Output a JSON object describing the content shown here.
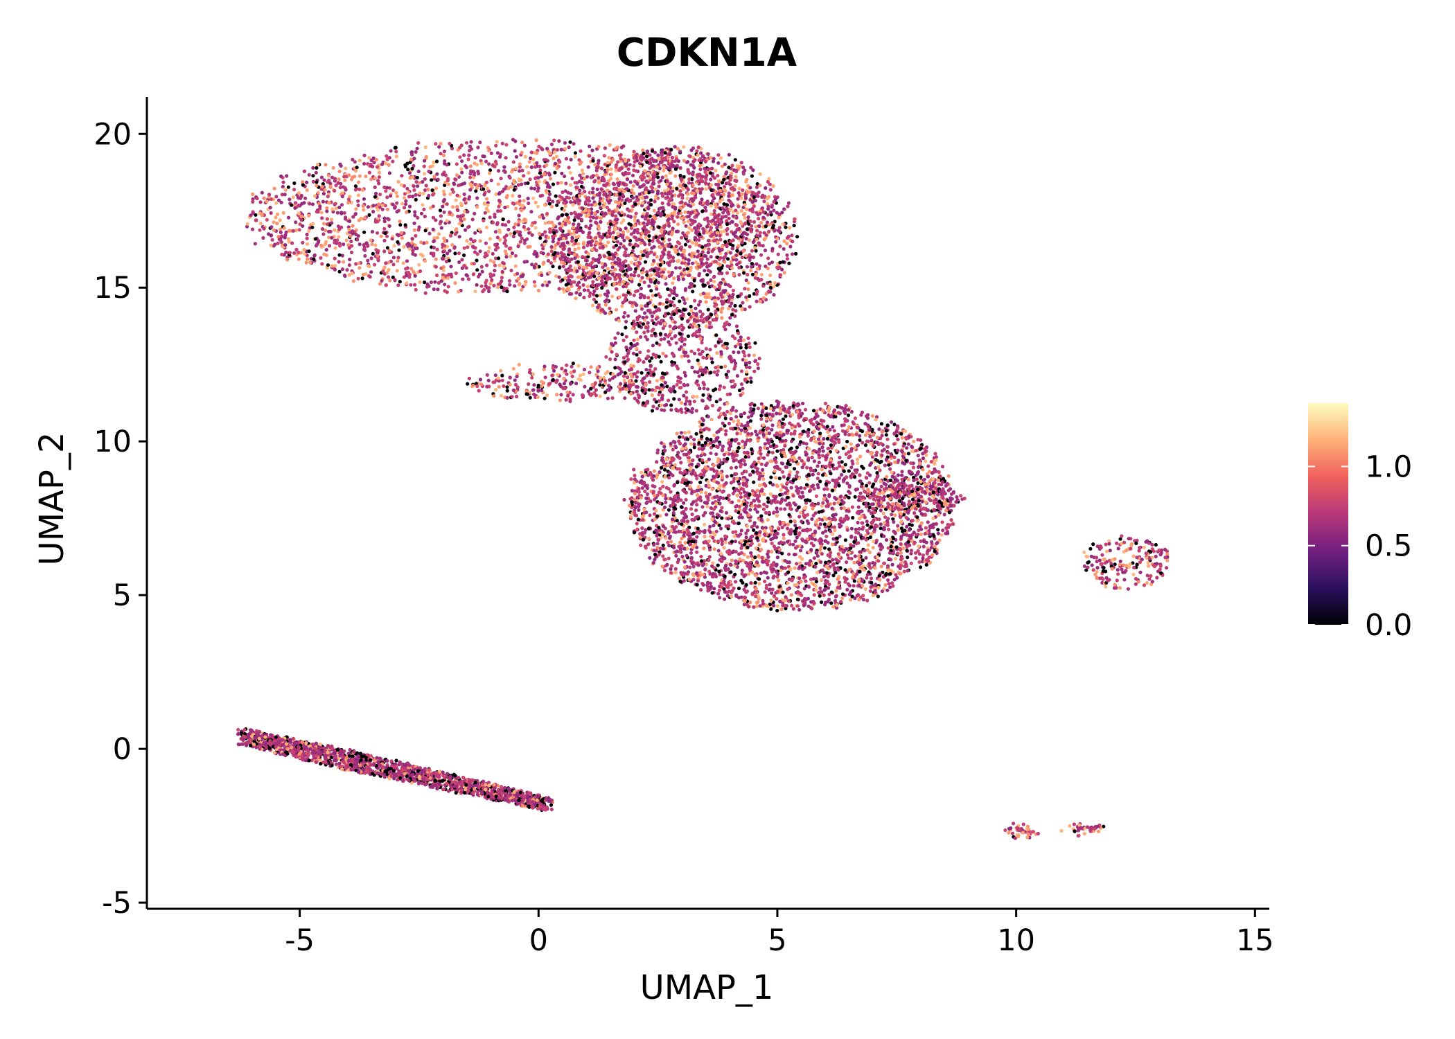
{
  "chart_data": {
    "type": "scatter",
    "title": "CDKN1A",
    "xlabel": "UMAP_1",
    "ylabel": "UMAP_2",
    "xlim": [
      -8.2,
      15.3
    ],
    "ylim": [
      -5.2,
      21.2
    ],
    "xticks": [
      -5,
      0,
      5,
      10,
      15
    ],
    "yticks": [
      -5,
      0,
      5,
      10,
      15,
      20
    ],
    "xtick_labels": [
      "-5",
      "0",
      "5",
      "10",
      "15"
    ],
    "ytick_labels": [
      "-5",
      "0",
      "5",
      "10",
      "15",
      "20"
    ],
    "color_scale": {
      "name": "magma",
      "min": 0.0,
      "max": 1.4,
      "ticks": [
        0.0,
        0.5,
        1.0
      ],
      "tick_labels": [
        "0.0",
        "0.5",
        "1.0"
      ],
      "stops": [
        "#000004",
        "#2c115f",
        "#721f81",
        "#b73779",
        "#f1605d",
        "#feb078",
        "#fcfdbf"
      ]
    },
    "legend_position": "right",
    "clusters": [
      {
        "name": "top-left",
        "cx": -0.6,
        "cy": 17.3,
        "rx": 5.6,
        "ry": 2.5,
        "n": 2400,
        "mean_expr": 0.95
      },
      {
        "name": "top-right",
        "cx": 2.8,
        "cy": 16.6,
        "rx": 2.6,
        "ry": 3.0,
        "n": 1700,
        "mean_expr": 0.62
      },
      {
        "name": "bridge",
        "cx": 3.0,
        "cy": 12.6,
        "rx": 1.6,
        "ry": 1.7,
        "n": 500,
        "mean_expr": 0.35
      },
      {
        "name": "branch",
        "cx": 0.6,
        "cy": 11.9,
        "rx": 2.1,
        "ry": 0.6,
        "n": 250,
        "mean_expr": 0.6
      },
      {
        "name": "middle",
        "cx": 5.3,
        "cy": 7.9,
        "rx": 3.4,
        "ry": 3.4,
        "n": 3400,
        "mean_expr": 0.58
      },
      {
        "name": "middle-tail",
        "cx": 7.8,
        "cy": 8.2,
        "rx": 1.1,
        "ry": 0.5,
        "n": 200,
        "mean_expr": 0.5
      },
      {
        "name": "bottom-strip",
        "x0": -6.2,
        "y0": 0.4,
        "x1": 0.2,
        "y1": -1.8,
        "width": 0.65,
        "n": 1700,
        "mean_expr": 0.4
      },
      {
        "name": "right-small",
        "cx": 12.3,
        "cy": 6.1,
        "rx": 0.9,
        "ry": 0.9,
        "n": 180,
        "mean_expr": 0.75
      },
      {
        "name": "bottom-right-a",
        "cx": 10.1,
        "cy": -2.7,
        "rx": 0.3,
        "ry": 0.2,
        "n": 45,
        "mean_expr": 1.0
      },
      {
        "name": "bottom-right-b",
        "cx": 11.5,
        "cy": -2.6,
        "rx": 0.45,
        "ry": 0.1,
        "n": 40,
        "mean_expr": 0.95
      }
    ]
  }
}
